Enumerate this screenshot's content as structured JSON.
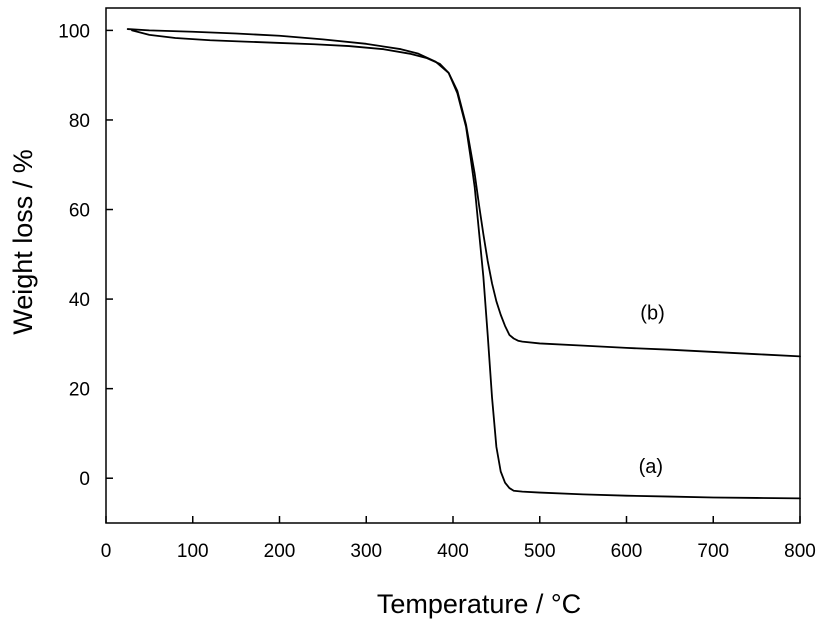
{
  "chart_data": {
    "type": "line",
    "xlabel": "Temperature / °C",
    "ylabel": "Weight loss / %",
    "xlim": [
      0,
      800
    ],
    "ylim": [
      -10,
      105
    ],
    "xticks": [
      0,
      100,
      200,
      300,
      400,
      500,
      600,
      700,
      800
    ],
    "yticks": [
      0,
      20,
      40,
      60,
      80,
      100
    ],
    "grid": false,
    "legend": "none",
    "line_color": "#000000",
    "series": [
      {
        "name": "(a)",
        "x": [
          30,
          50,
          80,
          120,
          160,
          200,
          240,
          280,
          320,
          350,
          370,
          385,
          395,
          405,
          415,
          420,
          425,
          430,
          435,
          440,
          445,
          450,
          455,
          460,
          465,
          470,
          480,
          500,
          550,
          600,
          650,
          700,
          750,
          800
        ],
        "y": [
          100.0,
          99.0,
          98.3,
          97.8,
          97.5,
          97.2,
          96.9,
          96.5,
          95.8,
          94.8,
          93.8,
          92.5,
          90.5,
          86.0,
          78.5,
          72.0,
          65.0,
          55.0,
          45.0,
          32.0,
          18.0,
          7.0,
          1.5,
          -1.0,
          -2.2,
          -2.8,
          -3.0,
          -3.2,
          -3.6,
          -3.9,
          -4.1,
          -4.3,
          -4.4,
          -4.5
        ]
      },
      {
        "name": "(b)",
        "x": [
          25,
          50,
          100,
          150,
          200,
          250,
          300,
          340,
          360,
          380,
          395,
          405,
          415,
          425,
          430,
          435,
          440,
          445,
          450,
          455,
          460,
          465,
          470,
          475,
          480,
          500,
          550,
          600,
          650,
          700,
          750,
          800
        ],
        "y": [
          100.3,
          100.0,
          99.7,
          99.3,
          98.8,
          98.0,
          97.0,
          95.8,
          94.8,
          93.0,
          90.5,
          86.5,
          79.0,
          68.0,
          61.0,
          54.5,
          48.5,
          43.5,
          39.5,
          36.5,
          34.0,
          32.0,
          31.2,
          30.7,
          30.5,
          30.1,
          29.6,
          29.1,
          28.7,
          28.2,
          27.7,
          27.2
        ]
      }
    ],
    "annotations": [
      {
        "text": "(b)",
        "x": 630,
        "y": 35.4
      },
      {
        "text": "(a)",
        "x": 628,
        "y": 1.2
      }
    ]
  }
}
